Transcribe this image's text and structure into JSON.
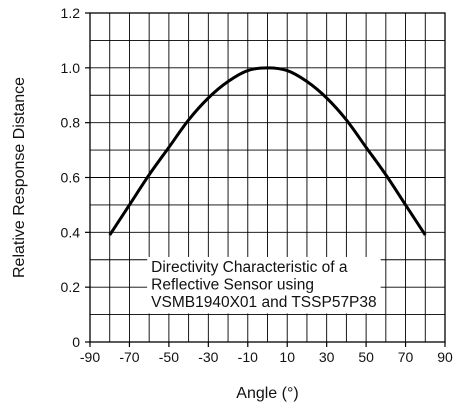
{
  "chart_data": {
    "type": "line",
    "title": "",
    "xlabel": "Angle (°)",
    "ylabel": "Relative Response Distance",
    "xlim": [
      -90,
      90
    ],
    "ylim": [
      0,
      1.2
    ],
    "xticks": [
      -90,
      -70,
      -50,
      -30,
      -10,
      10,
      30,
      50,
      70,
      90
    ],
    "xtick_labels": [
      "-90",
      "-70",
      "-50",
      "-30",
      "-10",
      "10",
      "30",
      "50",
      "70",
      "90"
    ],
    "yticks": [
      0,
      0.2,
      0.4,
      0.6,
      0.8,
      1.0,
      1.2
    ],
    "ytick_labels": [
      "0",
      "0.2",
      "0.4",
      "0.6",
      "0.8",
      "1.0",
      "1.2"
    ],
    "grid": true,
    "grid_x_step": 10,
    "grid_y_step": 0.1,
    "series": [
      {
        "x": [
          -80,
          -70,
          -60,
          -50,
          -40,
          -30,
          -20,
          -10,
          0,
          10,
          20,
          30,
          40,
          50,
          60,
          70,
          80
        ],
        "y": [
          0.39,
          0.5,
          0.61,
          0.71,
          0.81,
          0.89,
          0.95,
          0.99,
          1.0,
          0.99,
          0.95,
          0.89,
          0.81,
          0.71,
          0.61,
          0.5,
          0.39
        ],
        "color": "#000000"
      }
    ],
    "annotation": {
      "lines": [
        "Directivity Characteristic of a",
        "Reflective Sensor using",
        "VSMB1940X01 and TSSP57P38"
      ],
      "anchor_x": -60,
      "anchor_y": 0.27
    }
  }
}
